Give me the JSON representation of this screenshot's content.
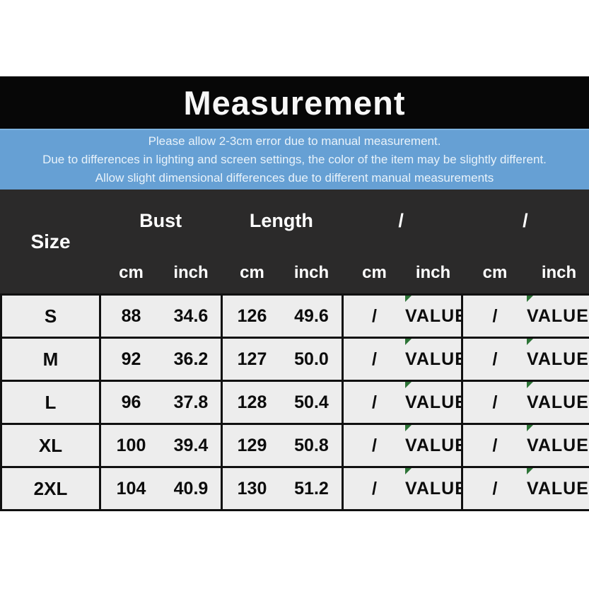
{
  "title": "Measurement",
  "notice": {
    "lines": [
      "Please allow 2-3cm error due to manual measurement.",
      "Due to differences in lighting and screen settings, the color of the item may be slightly different.",
      "Allow slight dimensional differences due to different manual measurements"
    ]
  },
  "table": {
    "size_header": "Size",
    "groups": [
      "Bust",
      "Length",
      "/",
      "/"
    ],
    "units": [
      "cm",
      "inch",
      "cm",
      "inch",
      "cm",
      "inch",
      "cm",
      "inch"
    ],
    "rows": [
      {
        "size": "S",
        "values": [
          "88",
          "34.6",
          "126",
          "49.6",
          "/",
          "VALUE",
          "/",
          "VALUE"
        ]
      },
      {
        "size": "M",
        "values": [
          "92",
          "36.2",
          "127",
          "50.0",
          "/",
          "VALUE",
          "/",
          "VALUE"
        ]
      },
      {
        "size": "L",
        "values": [
          "96",
          "37.8",
          "128",
          "50.4",
          "/",
          "VALUE",
          "/",
          "VALUE"
        ]
      },
      {
        "size": "XL",
        "values": [
          "100",
          "39.4",
          "129",
          "50.8",
          "/",
          "VALUE",
          "/",
          "VALUE"
        ]
      },
      {
        "size": "2XL",
        "values": [
          "104",
          "40.9",
          "130",
          "51.2",
          "/",
          "VALUE",
          "/",
          "VALUE"
        ]
      }
    ]
  },
  "colors": {
    "title_band_bg": "#070707",
    "title_text": "#f7f7f7",
    "notice_bg": "#66a0d4",
    "notice_text": "#e8f2fa",
    "table_header_bg": "#2b2a2a",
    "table_header_text": "#ffffff",
    "row_bg": "#ededed",
    "row_text": "#0c0c0c",
    "border": "#101010",
    "error_indicator": "#2c7336"
  }
}
